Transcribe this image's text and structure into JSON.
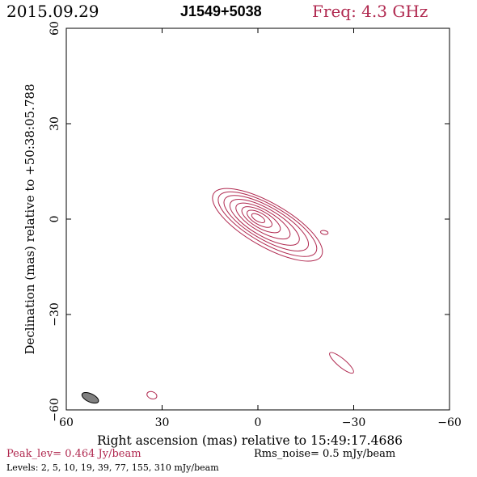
{
  "header": {
    "date": "2015.09.29",
    "source": "J1549+5038",
    "freq": "Freq: 4.3 GHz"
  },
  "footer": {
    "peak": "Peak_lev=  0.464 Jy/beam",
    "rms": "Rms_noise=  0.5 mJy/beam",
    "levels": "Levels:   2,    5,   10,   19,   39,   77,  155,  310  mJy/beam"
  },
  "colors": {
    "contour": "#b0284f",
    "axis": "#000000",
    "beam_fill": "#808080",
    "freq_text": "#b0284f",
    "peak_text": "#b0284f"
  },
  "chart_data": {
    "type": "contour",
    "xlabel": "Right ascension (mas) relative to 15:49:17.4686",
    "ylabel": "Declination (mas) relative to +50:38:05.788",
    "xlim": [
      60,
      -60
    ],
    "ylim": [
      -60,
      60
    ],
    "xticks": [
      60,
      30,
      0,
      -30,
      -60
    ],
    "yticks": [
      60,
      30,
      0,
      -30,
      -60
    ],
    "xtick_labels": [
      "60",
      "30",
      "0",
      "−30",
      "−60"
    ],
    "ytick_labels": [
      "60",
      "30",
      "0",
      "−30",
      "−60"
    ],
    "levels_mjy": [
      2,
      5,
      10,
      19,
      39,
      77,
      155,
      310
    ],
    "main_component": {
      "contours": [
        {
          "cx": -3.0,
          "cy": -1.8,
          "a": 19.5,
          "b": 6.8,
          "angle": -30
        },
        {
          "cx": -3.0,
          "cy": -1.6,
          "a": 17.5,
          "b": 5.9,
          "angle": -30
        },
        {
          "cx": -2.6,
          "cy": -1.3,
          "a": 15.0,
          "b": 5.1,
          "angle": -30
        },
        {
          "cx": -2.1,
          "cy": -1.0,
          "a": 12.3,
          "b": 4.3,
          "angle": -30
        },
        {
          "cx": -1.6,
          "cy": -0.6,
          "a": 9.6,
          "b": 3.4,
          "angle": -30
        },
        {
          "cx": -1.0,
          "cy": -0.2,
          "a": 6.8,
          "b": 2.6,
          "angle": -30
        },
        {
          "cx": -0.5,
          "cy": 0.1,
          "a": 4.4,
          "b": 1.8,
          "angle": -30
        },
        {
          "cx": -0.1,
          "cy": 0.3,
          "a": 2.3,
          "b": 1.0,
          "angle": -30
        }
      ]
    },
    "small_components": [
      {
        "cx": -20.8,
        "cy": -4.2,
        "a": 1.2,
        "b": 0.6,
        "angle": -10
      },
      {
        "cx": -26.2,
        "cy": -45.2,
        "a": 4.8,
        "b": 1.3,
        "angle": -40
      },
      {
        "cx": 33.2,
        "cy": -55.4,
        "a": 1.6,
        "b": 1.1,
        "angle": -20
      }
    ],
    "beam": {
      "cx": 52.5,
      "cy": -56.2,
      "a": 2.8,
      "b": 1.3,
      "angle": -25
    }
  }
}
